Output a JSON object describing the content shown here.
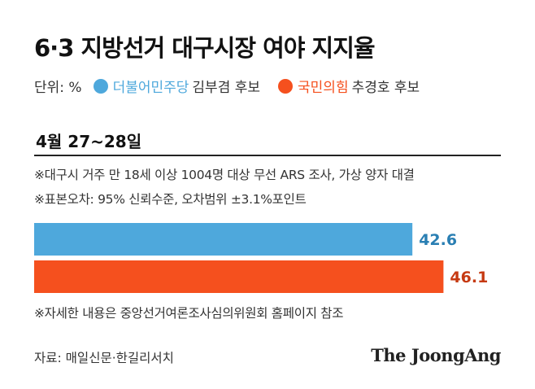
{
  "title": "6·3 지방선거 대구시장 여야 지지율",
  "legend": {
    "unit": "단위: %",
    "items": [
      {
        "party": "더불어민주당",
        "candidate": "김부겸 후보",
        "color": "#4ea8dc"
      },
      {
        "party": "국민의힘",
        "candidate": "추경호 후보",
        "color": "#f5501e"
      }
    ]
  },
  "date": "4월 27~28일",
  "notes": [
    "※대구시 거주 만 18세 이상 1004명 대상 무선 ARS 조사, 가상 양자 대결",
    "※표본오차: 95% 신뢰수준, 오차범위 ±3.1%포인트",
    "※자세한 내용은 중앙선거여론조사심의위원회 홈페이지 참조"
  ],
  "source": "자료: 매일신문·한길리서치",
  "logo": "The JoongAng",
  "chart_data": {
    "type": "bar",
    "orientation": "horizontal",
    "categories": [
      "김부겸 후보",
      "추경호 후보"
    ],
    "values": [
      42.6,
      46.1
    ],
    "value_labels": [
      "42.6",
      "46.1"
    ],
    "colors": [
      "#4ea8dc",
      "#f5501e"
    ],
    "label_colors": [
      "#2a7fb3",
      "#c63a12"
    ],
    "xlim": [
      0,
      50
    ],
    "grid": false,
    "unit": "%"
  }
}
